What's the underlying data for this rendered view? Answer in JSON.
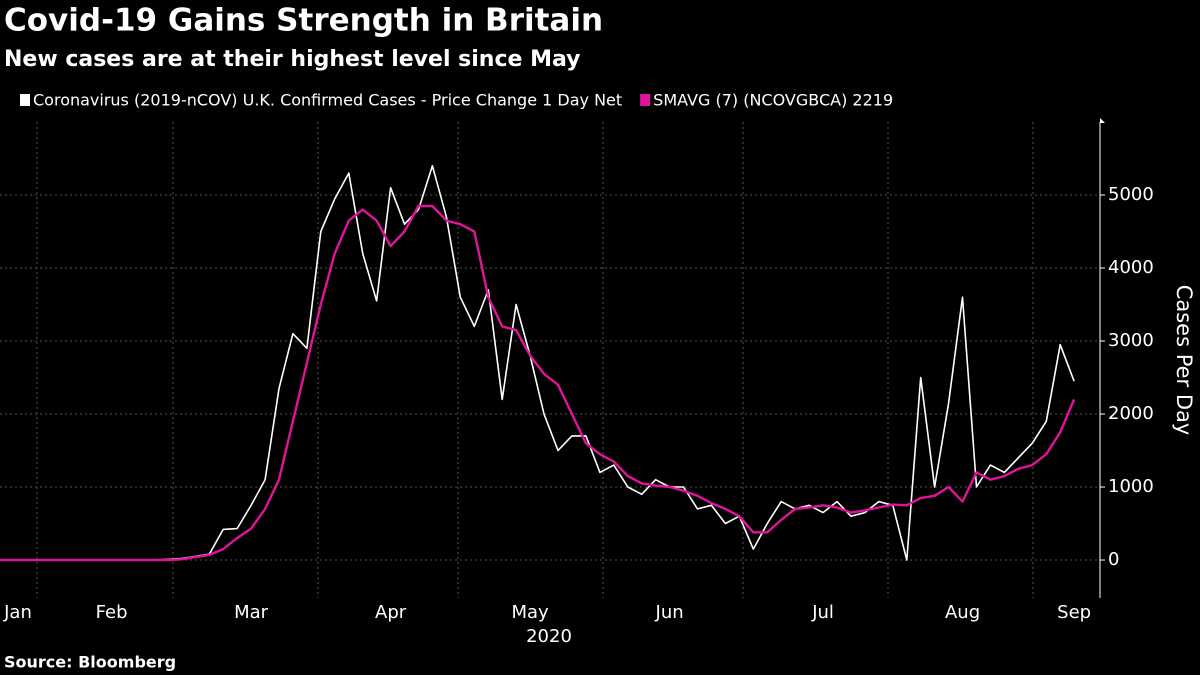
{
  "chart_data": {
    "type": "line",
    "title": "Covid-19 Gains Strength in Britain",
    "subtitle": "New cases are at their highest level since May",
    "source": "Source: Bloomberg",
    "ylabel": "Cases Per Day",
    "xlabel": "2020",
    "categories": [
      null,
      "Jan",
      null,
      null,
      null,
      null,
      null,
      null,
      "Feb",
      null,
      null,
      null,
      null,
      null,
      null,
      null,
      null,
      null,
      "Mar",
      null,
      null,
      null,
      null,
      null,
      null,
      null,
      null,
      null,
      "Apr",
      null,
      null,
      null,
      null,
      null,
      null,
      null,
      null,
      null,
      "May",
      null,
      null,
      null,
      null,
      null,
      null,
      null,
      null,
      null,
      "Jun",
      null,
      null,
      null,
      null,
      null,
      null,
      null,
      null,
      null,
      null,
      "Jul",
      null,
      null,
      null,
      null,
      null,
      null,
      null,
      null,
      null,
      "Aug",
      null,
      null,
      null,
      null,
      null,
      null,
      null,
      "Sep"
    ],
    "series": [
      {
        "name": "Coronavirus (2019-nCOV) U.K. Confirmed Cases - Price Change 1 Day Net",
        "color": "#ffffff",
        "values": [
          0,
          0,
          0,
          0,
          0,
          0,
          0,
          0,
          0,
          0,
          0,
          0,
          10,
          20,
          50,
          80,
          420,
          430,
          750,
          1100,
          2350,
          3100,
          2900,
          4500,
          4950,
          5300,
          4200,
          3550,
          5100,
          4600,
          4800,
          5400,
          4700,
          3600,
          3200,
          3700,
          2200,
          3500,
          2800,
          2000,
          1500,
          1700,
          1700,
          1200,
          1300,
          1000,
          900,
          1100,
          1000,
          1000,
          700,
          750,
          500,
          600,
          150,
          500,
          800,
          700,
          750,
          650,
          800,
          600,
          650,
          800,
          750,
          0,
          2500,
          1000,
          2150,
          3600,
          1000,
          1300,
          1200,
          1400,
          1600,
          1900,
          2950,
          2450
        ]
      },
      {
        "name": "SMAVG (7) (NCOVGBCA) 2219",
        "color": "#e0149a",
        "values": [
          0,
          0,
          0,
          0,
          0,
          0,
          0,
          0,
          0,
          0,
          0,
          0,
          0,
          10,
          40,
          70,
          150,
          300,
          430,
          700,
          1100,
          1900,
          2700,
          3500,
          4200,
          4650,
          4800,
          4650,
          4300,
          4500,
          4850,
          4850,
          4650,
          4600,
          4500,
          3600,
          3200,
          3150,
          2800,
          2550,
          2400,
          2000,
          1600,
          1450,
          1350,
          1150,
          1050,
          1020,
          1000,
          950,
          880,
          780,
          700,
          600,
          380,
          380,
          550,
          700,
          720,
          750,
          720,
          650,
          680,
          720,
          760,
          750,
          850,
          880,
          1000,
          800,
          1200,
          1100,
          1150,
          1250,
          1300,
          1450,
          1750,
          2200
        ]
      }
    ],
    "ylim": [
      -520,
      6000
    ],
    "yticks": [
      0,
      1000,
      2000,
      3000,
      4000,
      5000
    ],
    "grid": true
  }
}
